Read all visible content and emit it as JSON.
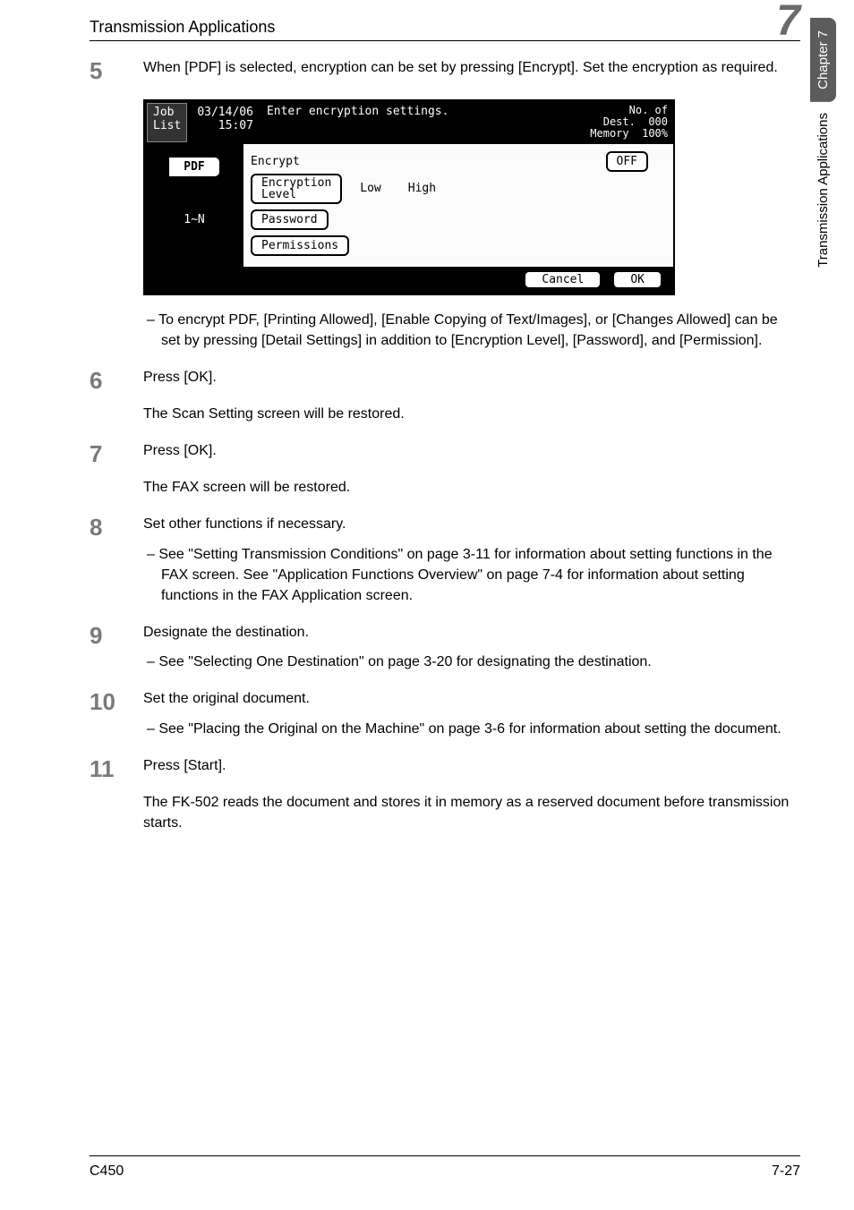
{
  "header": {
    "title": "Transmission Applications",
    "chapter_num": "7"
  },
  "side": {
    "chapter": "Chapter 7",
    "section": "Transmission Applications"
  },
  "footer": {
    "left": "C450",
    "right": "7-27"
  },
  "screenshot": {
    "job": "Job\nList",
    "date": "03/14/06\n15:07",
    "message": "Enter encryption settings.",
    "dest_label": "No. of\nDest.",
    "dest_val": "000",
    "mem_label": "Memory",
    "mem_val": "100%",
    "tab": "PDF",
    "one_n": "1~N",
    "encrypt": "Encrypt",
    "off": "OFF",
    "enc_level": "Encryption\nLevel",
    "low": "Low",
    "high": "High",
    "password": "Password",
    "permissions": "Permissions",
    "cancel": "Cancel",
    "ok": "OK"
  },
  "steps": {
    "s5": {
      "num": "5",
      "text": "When [PDF] is selected, encryption can be set by pressing [Encrypt]. Set the encryption as required.",
      "sub1": "To encrypt PDF, [Printing Allowed], [Enable Copying of Text/Images], or [Changes Allowed] can be set by pressing [Detail Settings] in addition to [Encryption Level], [Password], and [Permission]."
    },
    "s6": {
      "num": "6",
      "text": "Press [OK].",
      "follow": "The Scan Setting screen will be restored."
    },
    "s7": {
      "num": "7",
      "text": "Press [OK].",
      "follow": "The FAX screen will be restored."
    },
    "s8": {
      "num": "8",
      "text": "Set other functions if necessary.",
      "sub1": "See \"Setting Transmission Conditions\" on page 3-11 for information about setting functions in the FAX screen. See \"Application Functions Overview\" on page 7-4 for information about setting functions in the FAX Application screen."
    },
    "s9": {
      "num": "9",
      "text": "Designate the destination.",
      "sub1": "See \"Selecting One Destination\" on page 3-20 for designating the destination."
    },
    "s10": {
      "num": "10",
      "text": "Set the original document.",
      "sub1": "See \"Placing the Original on the Machine\" on page 3-6 for information about setting the document."
    },
    "s11": {
      "num": "11",
      "text": "Press [Start].",
      "follow": "The FK-502 reads the document and stores it in memory as a reserved document before transmission starts."
    }
  }
}
